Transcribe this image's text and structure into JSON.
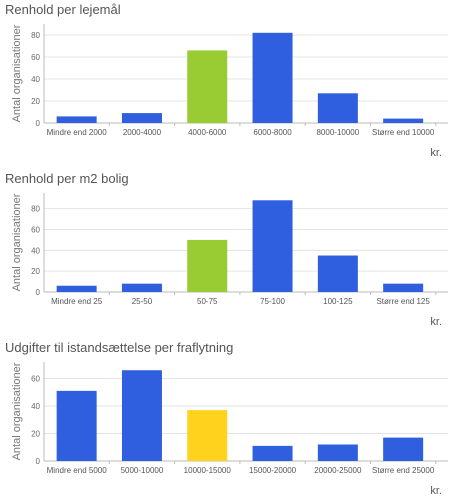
{
  "chart_data": [
    {
      "type": "bar",
      "title": "Renhold per lejemål",
      "ylabel": "Antal organisationer",
      "xlabel": "kr.",
      "ylim": [
        0,
        90
      ],
      "yticks": [
        0,
        20,
        40,
        60,
        80
      ],
      "grid": true,
      "categories": [
        "Mindre end 2000",
        "2000-4000",
        "4000-6000",
        "6000-8000",
        "8000-10000",
        "Større end 10000"
      ],
      "values": [
        6,
        9,
        66,
        82,
        27,
        4
      ],
      "colors": [
        "#2f5fde",
        "#2f5fde",
        "#99cc33",
        "#2f5fde",
        "#2f5fde",
        "#2f5fde"
      ]
    },
    {
      "type": "bar",
      "title": "Renhold per m2 bolig",
      "ylabel": "Antal organisationer",
      "xlabel": "kr.",
      "ylim": [
        0,
        95
      ],
      "yticks": [
        0,
        20,
        40,
        60,
        80
      ],
      "grid": true,
      "categories": [
        "Mindre end 25",
        "25-50",
        "50-75",
        "75-100",
        "100-125",
        "Større end 125"
      ],
      "values": [
        6,
        8,
        50,
        88,
        35,
        8
      ],
      "colors": [
        "#2f5fde",
        "#2f5fde",
        "#99cc33",
        "#2f5fde",
        "#2f5fde",
        "#2f5fde"
      ]
    },
    {
      "type": "bar",
      "title": "Udgifter til istandsættelse per fraflytning",
      "ylabel": "Antal organisationer",
      "xlabel": "kr.",
      "ylim": [
        0,
        72
      ],
      "yticks": [
        0,
        20,
        40,
        60
      ],
      "grid": true,
      "categories": [
        "Mindre end 5000",
        "5000-10000",
        "10000-15000",
        "15000-20000",
        "20000-25000",
        "Større end 25000"
      ],
      "values": [
        51,
        66,
        37,
        11,
        12,
        17
      ],
      "colors": [
        "#2f5fde",
        "#2f5fde",
        "#ffd21e",
        "#2f5fde",
        "#2f5fde",
        "#2f5fde"
      ]
    }
  ]
}
